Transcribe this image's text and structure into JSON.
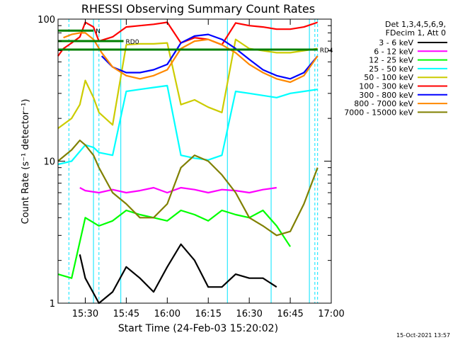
{
  "chart_data": {
    "type": "line",
    "title": "RHESSI Observing Summary Count Rates",
    "xlabel": "Start Time (24-Feb-03 15:20:02)",
    "ylabel": "Count Rate (s⁻¹ detector⁻¹)",
    "y_scale": "log",
    "ylim": [
      1,
      100
    ],
    "xlim": [
      "15:20:02",
      "17:00"
    ],
    "x_ticks": [
      "15:30",
      "15:45",
      "16:00",
      "16:15",
      "16:30",
      "16:45",
      "17:00"
    ],
    "y_ticks": [
      "1",
      "10",
      "100"
    ],
    "legend_title": [
      "Det 1,3,4,5,6,9,",
      "FDecim 1, Att 0"
    ],
    "legend_position": "right",
    "timestamp": "15-Oct-2021 13:57",
    "annotations": [
      "N",
      "RD0",
      "RD4"
    ],
    "vertical_markers": {
      "solid_cyan": [
        "15:33",
        "15:43",
        "16:22",
        "16:38",
        "16:52"
      ],
      "dashed_cyan": [
        "15:24",
        "15:35",
        "16:54",
        "16:55"
      ]
    },
    "status_bars": [
      {
        "label": "N",
        "y": 83,
        "x_from": "15:20:02",
        "x_to": "15:33"
      },
      {
        "label": "RD0",
        "y": 70,
        "x_from": "15:20:02",
        "x_to": "15:44"
      },
      {
        "label": "RD4",
        "y": 61,
        "x_from": "15:20:02",
        "x_to": "16:55"
      }
    ],
    "series": [
      {
        "name": "3 - 6 keV",
        "color": "#000000",
        "x": [
          "15:28",
          "15:30",
          "15:35",
          "15:40",
          "15:45",
          "15:50",
          "15:55",
          "16:00",
          "16:05",
          "16:10",
          "16:15",
          "16:20",
          "16:25",
          "16:30",
          "16:35",
          "16:40"
        ],
        "y": [
          2.2,
          1.5,
          1.0,
          1.2,
          1.8,
          1.5,
          1.2,
          1.8,
          2.6,
          2.0,
          1.3,
          1.3,
          1.6,
          1.5,
          1.5,
          1.3
        ]
      },
      {
        "name": "6 - 12 keV",
        "color": "#ff00ff",
        "x": [
          "15:28",
          "15:30",
          "15:35",
          "15:40",
          "15:45",
          "15:50",
          "15:55",
          "16:00",
          "16:05",
          "16:10",
          "16:15",
          "16:20",
          "16:25",
          "16:30",
          "16:35",
          "16:40"
        ],
        "y": [
          6.5,
          6.2,
          6.0,
          6.3,
          6.0,
          6.2,
          6.5,
          6.0,
          6.5,
          6.3,
          6.0,
          6.3,
          6.2,
          6.0,
          6.3,
          6.5
        ]
      },
      {
        "name": "12 - 25 keV",
        "color": "#00ff00",
        "x": [
          "15:20",
          "15:25",
          "15:30",
          "15:35",
          "15:40",
          "15:45",
          "15:50",
          "15:55",
          "16:00",
          "16:05",
          "16:10",
          "16:15",
          "16:20",
          "16:25",
          "16:30",
          "16:35",
          "16:40",
          "16:45"
        ],
        "y": [
          1.6,
          1.5,
          4.0,
          3.5,
          3.8,
          4.5,
          4.2,
          4.0,
          3.8,
          4.5,
          4.2,
          3.8,
          4.5,
          4.2,
          4.0,
          4.5,
          3.5,
          2.5
        ]
      },
      {
        "name": "25 - 50 keV",
        "color": "#00ffff",
        "x": [
          "15:20",
          "15:25",
          "15:30",
          "15:33",
          "15:35",
          "15:40",
          "15:45",
          "15:50",
          "15:55",
          "16:00",
          "16:05",
          "16:10",
          "16:15",
          "16:20",
          "16:25",
          "16:30",
          "16:35",
          "16:40",
          "16:45",
          "16:50",
          "16:55"
        ],
        "y": [
          9.5,
          10.0,
          13.0,
          12.5,
          11.5,
          11.0,
          31.0,
          32.0,
          33.0,
          34.0,
          11.0,
          10.5,
          10.2,
          11.0,
          31.0,
          30.0,
          29.0,
          28.0,
          30.0,
          31.0,
          32.0
        ]
      },
      {
        "name": "50 - 100 keV",
        "color": "#cccc00",
        "x": [
          "15:20",
          "15:25",
          "15:28",
          "15:30",
          "15:33",
          "15:35",
          "15:40",
          "15:45",
          "15:50",
          "15:55",
          "16:00",
          "16:05",
          "16:10",
          "16:15",
          "16:20",
          "16:25",
          "16:30",
          "16:35",
          "16:40",
          "16:45",
          "16:50",
          "16:55"
        ],
        "y": [
          17.0,
          20.0,
          25.0,
          37.0,
          28.0,
          22.0,
          18.0,
          66.0,
          67.0,
          67.0,
          68.0,
          25.0,
          27.0,
          24.0,
          22.0,
          72.0,
          62.0,
          60.0,
          58.0,
          58.0,
          60.0,
          62.0
        ]
      },
      {
        "name": "100 - 300 keV",
        "color": "#ff0000",
        "x": [
          "15:20",
          "15:22",
          "15:25",
          "15:28",
          "15:30",
          "15:33",
          "15:35",
          "15:40",
          "15:45",
          "15:50",
          "15:55",
          "16:00",
          "16:05",
          "16:10",
          "16:15",
          "16:20",
          "16:25",
          "16:30",
          "16:35",
          "16:40",
          "16:45",
          "16:50",
          "16:55"
        ],
        "y": [
          55.0,
          62.0,
          68.0,
          75.0,
          95.0,
          88.0,
          70.0,
          75.0,
          88.0,
          90.0,
          92.0,
          95.0,
          68.0,
          74.0,
          72.0,
          66.0,
          94.0,
          90.0,
          88.0,
          85.0,
          85.0,
          88.0,
          95.0
        ]
      },
      {
        "name": "300 - 800 keV",
        "color": "#0000ff",
        "x": [
          "15:36",
          "15:40",
          "15:45",
          "15:50",
          "15:55",
          "16:00",
          "16:05",
          "16:10",
          "16:15",
          "16:20",
          "16:25",
          "16:30",
          "16:35",
          "16:40",
          "16:45",
          "16:50",
          "16:55"
        ],
        "y": [
          55.0,
          46.0,
          42.0,
          42.0,
          44.0,
          48.0,
          68.0,
          76.0,
          78.0,
          72.0,
          62.0,
          52.0,
          44.0,
          40.0,
          38.0,
          42.0,
          55.0
        ]
      },
      {
        "name": "800 - 7000 keV",
        "color": "#ff8800",
        "x": [
          "15:22",
          "15:25",
          "15:28",
          "15:30",
          "15:33",
          "15:36",
          "15:40",
          "15:45",
          "15:50",
          "15:55",
          "16:00",
          "16:05",
          "16:10",
          "16:15",
          "16:20",
          "16:25",
          "16:30",
          "16:35",
          "16:40",
          "16:45",
          "16:50",
          "16:55"
        ],
        "y": [
          74.0,
          78.0,
          80.0,
          80.0,
          72.0,
          58.0,
          46.0,
          40.0,
          38.0,
          40.0,
          44.0,
          62.0,
          70.0,
          72.0,
          66.0,
          58.0,
          48.0,
          42.0,
          38.0,
          36.0,
          40.0,
          55.0
        ]
      },
      {
        "name": "7000 - 15000 keV",
        "color": "#808000",
        "x": [
          "15:20",
          "15:25",
          "15:28",
          "15:30",
          "15:33",
          "15:35",
          "15:40",
          "15:45",
          "15:50",
          "15:55",
          "16:00",
          "16:05",
          "16:10",
          "16:15",
          "16:20",
          "16:25",
          "16:30",
          "16:35",
          "16:40",
          "16:45",
          "16:50",
          "16:55"
        ],
        "y": [
          10.0,
          12.0,
          14.0,
          13.0,
          11.0,
          9.0,
          6.0,
          5.0,
          4.0,
          4.0,
          5.0,
          9.0,
          11.0,
          10.0,
          8.0,
          6.0,
          4.0,
          3.5,
          3.0,
          3.2,
          5.0,
          9.0
        ]
      }
    ]
  }
}
